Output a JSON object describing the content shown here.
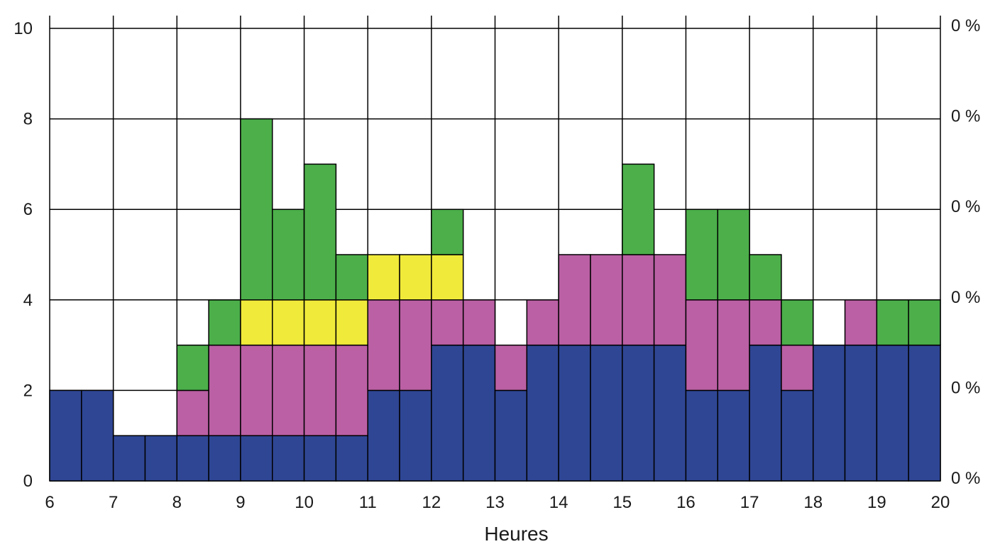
{
  "chart_data": {
    "type": "bar",
    "stacked": true,
    "xlabel": "Heures",
    "ylabel": "",
    "xlim": [
      6,
      20
    ],
    "ylim": [
      0,
      10
    ],
    "x_ticks": [
      "6",
      "7",
      "8",
      "9",
      "10",
      "11",
      "12",
      "13",
      "14",
      "15",
      "16",
      "17",
      "18",
      "19",
      "20"
    ],
    "y_ticks": [
      "0",
      "2",
      "4",
      "6",
      "8",
      "10"
    ],
    "y2_ticks": [
      "0 %",
      "0 %",
      "0 %",
      "0 %",
      "0 %",
      "0 %"
    ],
    "bin_width": 0.5,
    "grid": true,
    "bin_starts": [
      6,
      6.5,
      7,
      7.5,
      8,
      8.5,
      9,
      9.5,
      10,
      10.5,
      11,
      11.5,
      12,
      12.5,
      13,
      13.5,
      14,
      14.5,
      15,
      15.5,
      16,
      16.5,
      17,
      17.5,
      18,
      18.5,
      19,
      19.5
    ],
    "series": [
      {
        "color": "#2f4694",
        "values": [
          2,
          2,
          1,
          1,
          1,
          1,
          1,
          1,
          1,
          1,
          2,
          2,
          3,
          3,
          2,
          3,
          3,
          3,
          3,
          3,
          2,
          2,
          3,
          2,
          3,
          3,
          3,
          3
        ]
      },
      {
        "color": "#bb60a4",
        "values": [
          0,
          0,
          0,
          0,
          1,
          2,
          2,
          2,
          2,
          2,
          2,
          2,
          1,
          1,
          1,
          1,
          2,
          2,
          2,
          2,
          2,
          2,
          1,
          1,
          0,
          1,
          0,
          0
        ]
      },
      {
        "color": "#f0ea3a",
        "values": [
          0,
          0,
          0,
          0,
          0,
          0,
          1,
          1,
          1,
          1,
          1,
          1,
          1,
          0,
          0,
          0,
          0,
          0,
          0,
          0,
          0,
          0,
          0,
          0,
          0,
          0,
          0,
          0
        ]
      },
      {
        "color": "#4caf4a",
        "values": [
          0,
          0,
          0,
          0,
          1,
          1,
          4,
          2,
          3,
          1,
          0,
          0,
          1,
          0,
          0,
          0,
          0,
          0,
          2,
          0,
          2,
          2,
          1,
          1,
          0,
          0,
          1,
          1
        ]
      }
    ]
  }
}
